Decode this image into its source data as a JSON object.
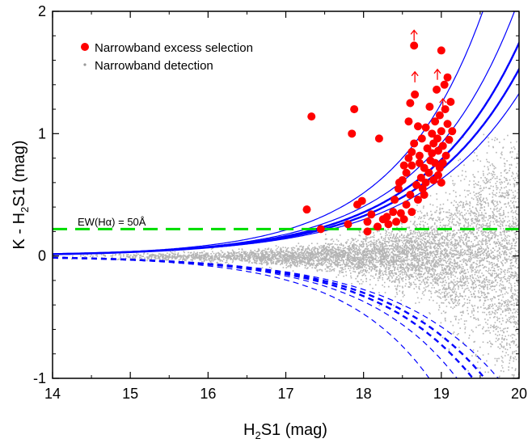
{
  "chart_data": {
    "type": "scatter",
    "xlabel_main": "H",
    "xlabel_sub": "2",
    "xlabel_rest": "S1 (mag)",
    "ylabel_main": "K - H",
    "ylabel_sub": "2",
    "ylabel_rest": "S1 (mag)",
    "xlim": [
      14,
      20
    ],
    "ylim": [
      -1,
      2
    ],
    "xticks": [
      14,
      15,
      16,
      17,
      18,
      19,
      20
    ],
    "yticks": [
      -1,
      0,
      1,
      2
    ],
    "xtick_labels": [
      "14",
      "15",
      "16",
      "17",
      "18",
      "19",
      "20"
    ],
    "ytick_labels": [
      "-1",
      "0",
      "1",
      "2"
    ],
    "legend": [
      {
        "label": "Narrowband excess selection",
        "marker": "filled-circle",
        "color": "#ff0000"
      },
      {
        "label": "Narrowband detection",
        "marker": "small-dot",
        "color": "#b4b4b4"
      }
    ],
    "legend_position": "top-left",
    "threshold_line": {
      "y": 0.22,
      "label": "EW(Hα) = 50Å",
      "color": "#00dd00",
      "style": "dashed"
    },
    "significance_curves": {
      "color": "#0000ff",
      "upper_style": "solid",
      "lower_style": "dashed",
      "curves_x_at_y1": [
        18.75,
        19.1,
        19.3,
        19.45,
        19.62
      ]
    },
    "series": [
      {
        "name": "Narrowband excess selection",
        "color": "#ff0000",
        "points": [
          [
            17.27,
            0.38
          ],
          [
            17.33,
            1.14
          ],
          [
            17.45,
            0.22
          ],
          [
            17.8,
            0.26
          ],
          [
            17.85,
            1.0
          ],
          [
            17.88,
            1.2
          ],
          [
            17.92,
            0.42
          ],
          [
            17.98,
            0.45
          ],
          [
            18.05,
            0.28
          ],
          [
            18.05,
            0.2
          ],
          [
            18.1,
            0.34
          ],
          [
            18.18,
            0.24
          ],
          [
            18.2,
            0.96
          ],
          [
            18.25,
            0.3
          ],
          [
            18.3,
            0.32
          ],
          [
            18.32,
            0.26
          ],
          [
            18.38,
            0.36
          ],
          [
            18.4,
            0.46
          ],
          [
            18.42,
            0.28
          ],
          [
            18.45,
            0.55
          ],
          [
            18.48,
            0.35
          ],
          [
            18.5,
            0.62
          ],
          [
            18.52,
            0.3
          ],
          [
            18.55,
            0.68
          ],
          [
            18.55,
            0.42
          ],
          [
            18.58,
            0.8
          ],
          [
            18.58,
            1.1
          ],
          [
            18.6,
            0.5
          ],
          [
            18.6,
            1.25
          ],
          [
            18.62,
            0.36
          ],
          [
            18.62,
            0.74
          ],
          [
            18.65,
            0.92
          ],
          [
            18.65,
            1.72
          ],
          [
            18.66,
            1.32
          ],
          [
            18.68,
            0.58
          ],
          [
            18.7,
            0.46
          ],
          [
            18.7,
            1.06
          ],
          [
            18.72,
            0.82
          ],
          [
            18.74,
            0.64
          ],
          [
            18.75,
            0.96
          ],
          [
            18.76,
            0.55
          ],
          [
            18.78,
            0.72
          ],
          [
            18.8,
            1.05
          ],
          [
            18.8,
            0.6
          ],
          [
            18.82,
            0.88
          ],
          [
            18.84,
            0.68
          ],
          [
            18.85,
            1.22
          ],
          [
            18.86,
            0.78
          ],
          [
            18.88,
            1.0
          ],
          [
            18.88,
            0.84
          ],
          [
            18.9,
            0.62
          ],
          [
            18.9,
            0.92
          ],
          [
            18.92,
            1.1
          ],
          [
            18.92,
            0.76
          ],
          [
            18.94,
            1.36
          ],
          [
            18.95,
            0.96
          ],
          [
            18.96,
            0.86
          ],
          [
            18.98,
            1.15
          ],
          [
            18.98,
            0.72
          ],
          [
            19.0,
            1.02
          ],
          [
            19.0,
            1.68
          ],
          [
            19.0,
            0.6
          ],
          [
            19.02,
            0.9
          ],
          [
            19.04,
            1.4
          ],
          [
            19.05,
            1.2
          ],
          [
            19.06,
            0.82
          ],
          [
            19.08,
            1.08
          ],
          [
            19.08,
            1.46
          ],
          [
            19.1,
            0.95
          ],
          [
            19.12,
            1.26
          ],
          [
            19.14,
            1.02
          ],
          [
            18.72,
            0.76
          ],
          [
            18.52,
            0.74
          ],
          [
            18.46,
            0.6
          ],
          [
            18.62,
            0.85
          ],
          [
            18.78,
            0.5
          ],
          [
            18.96,
            0.66
          ],
          [
            19.02,
            0.76
          ]
        ]
      },
      {
        "name": "Narrowband detection",
        "color": "#b4b4b4",
        "points": "dense cloud of ~12000 sources spanning 14–20 mag, scatter widening from ±0.02 at 14 mag to about ±0.9 at 20 mag"
      }
    ],
    "upper_limit_arrows": [
      [
        18.65,
        1.72
      ],
      [
        18.66,
        1.38
      ],
      [
        18.95,
        1.4
      ],
      [
        19.02,
        1.16
      ]
    ]
  }
}
